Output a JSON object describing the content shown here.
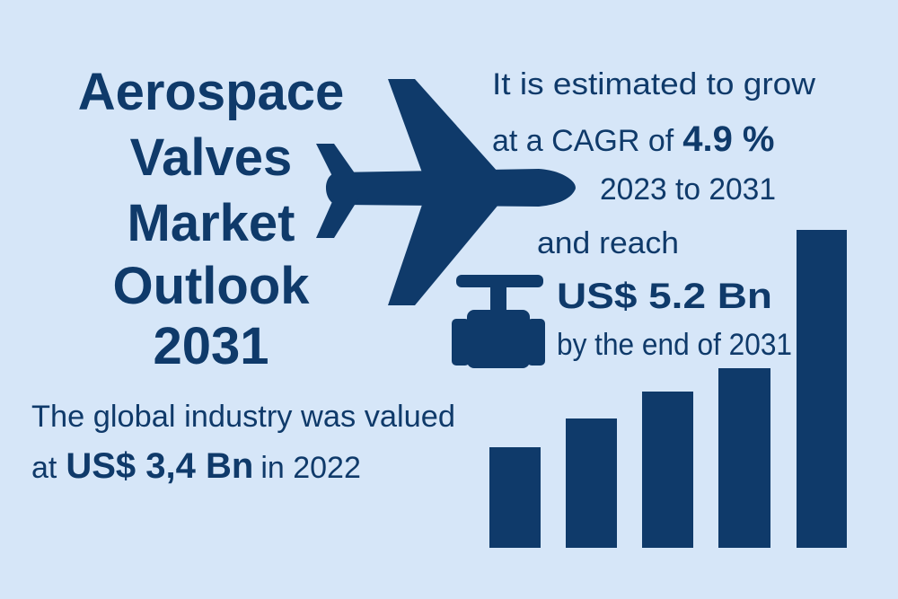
{
  "title": {
    "lines": [
      "Aerospace",
      "Valves",
      "Market",
      "Outlook",
      "2031"
    ]
  },
  "growth": {
    "line1": "It is estimated to grow",
    "line2_prefix": "at a CAGR of",
    "cagr": "4.9 %",
    "period": "2023 to 2031",
    "reach": "and reach",
    "target_value": "US$ 5.2 Bn",
    "target_suffix": "by the end of 2031"
  },
  "baseline": {
    "line1": "The global industry was valued",
    "prefix": "at",
    "value": "US$ 3,4 Bn",
    "suffix": "in 2022"
  }
}
